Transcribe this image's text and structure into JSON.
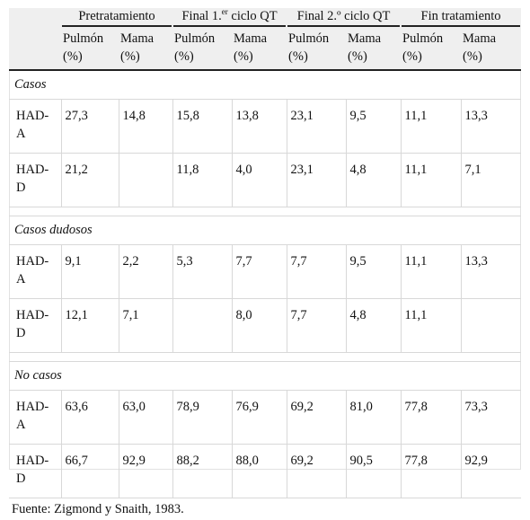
{
  "table": {
    "groups": [
      {
        "label": "Pretratamiento",
        "sup": "",
        "suffix": ""
      },
      {
        "label": "Final 1.",
        "sup": "er",
        "suffix": " ciclo QT"
      },
      {
        "label": "Final 2.º ciclo QT",
        "sup": "",
        "suffix": ""
      },
      {
        "label": "Fin tratamiento",
        "sup": "",
        "suffix": ""
      }
    ],
    "subheaders": [
      [
        "Pulmón",
        "(%)"
      ],
      [
        "Mama",
        "(%)"
      ],
      [
        "Pulmón",
        "(%)"
      ],
      [
        "Mama",
        "(%)"
      ],
      [
        "Pulmón",
        "(%)"
      ],
      [
        "Mama",
        "(%)"
      ],
      [
        "Pulmón",
        "(%)"
      ],
      [
        "Mama",
        "(%)"
      ]
    ],
    "sections": [
      {
        "title": "Casos",
        "rows": [
          {
            "label": [
              "HAD-",
              "A"
            ],
            "values": [
              "27,3",
              "14,8",
              "15,8",
              "13,8",
              "23,1",
              "9,5",
              "11,1",
              "13,3"
            ]
          },
          {
            "label": [
              "HAD-",
              "D"
            ],
            "values": [
              "21,2",
              "",
              "11,8",
              "4,0",
              "23,1",
              "4,8",
              "11,1",
              "7,1"
            ]
          }
        ]
      },
      {
        "title": "Casos dudosos",
        "rows": [
          {
            "label": [
              "HAD-",
              "A"
            ],
            "values": [
              "9,1",
              "2,2",
              "5,3",
              "7,7",
              "7,7",
              "9,5",
              "11,1",
              "13,3"
            ]
          },
          {
            "label": [
              "HAD-",
              "D"
            ],
            "values": [
              "12,1",
              "7,1",
              "",
              "8,0",
              "7,7",
              "4,8",
              "11,1",
              ""
            ]
          }
        ]
      },
      {
        "title": "No casos",
        "rows": [
          {
            "label": [
              "HAD-",
              "A"
            ],
            "values": [
              "63,6",
              "63,0",
              "78,9",
              "76,9",
              "69,2",
              "81,0",
              "77,8",
              "73,3"
            ]
          },
          {
            "label": [
              "HAD-",
              "D"
            ],
            "values": [
              "66,7",
              "92,9",
              "88,2",
              "88,0",
              "69,2",
              "90,5",
              "77,8",
              "92,9"
            ]
          }
        ]
      }
    ],
    "footer": "Fuente: Zigmond y Snaith, 1983."
  }
}
